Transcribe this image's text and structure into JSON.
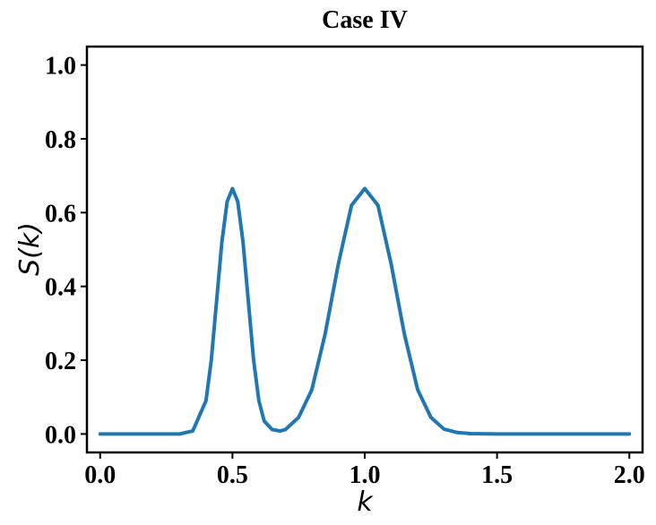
{
  "chart_data": {
    "type": "line",
    "title": "Case IV",
    "xlabel": "k",
    "ylabel": "S(k)",
    "xlim": [
      -0.05,
      2.05
    ],
    "ylim": [
      -0.05,
      1.05
    ],
    "xticks": [
      "0.0",
      "0.5",
      "1.0",
      "1.5",
      "2.0"
    ],
    "yticks": [
      "0.0",
      "0.2",
      "0.4",
      "0.6",
      "0.8",
      "1.0"
    ],
    "grid": false,
    "series": [
      {
        "color": "#1f77b4",
        "x": [
          0.0,
          0.1,
          0.2,
          0.3,
          0.35,
          0.4,
          0.42,
          0.44,
          0.46,
          0.48,
          0.5,
          0.52,
          0.54,
          0.56,
          0.58,
          0.6,
          0.62,
          0.65,
          0.68,
          0.7,
          0.75,
          0.8,
          0.85,
          0.9,
          0.95,
          1.0,
          1.05,
          1.1,
          1.15,
          1.2,
          1.25,
          1.3,
          1.35,
          1.4,
          1.5,
          1.6,
          1.8,
          2.0
        ],
        "y": [
          0.0,
          0.0,
          0.0,
          0.0,
          0.008,
          0.09,
          0.2,
          0.36,
          0.52,
          0.63,
          0.665,
          0.63,
          0.52,
          0.36,
          0.2,
          0.09,
          0.035,
          0.012,
          0.008,
          0.012,
          0.045,
          0.12,
          0.27,
          0.46,
          0.62,
          0.665,
          0.62,
          0.46,
          0.27,
          0.12,
          0.045,
          0.013,
          0.004,
          0.001,
          0.0,
          0.0,
          0.0,
          0.0
        ]
      }
    ]
  }
}
